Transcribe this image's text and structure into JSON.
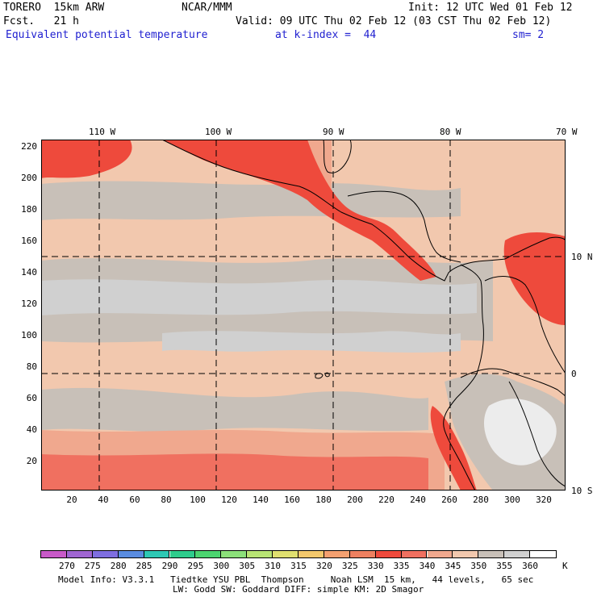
{
  "header": {
    "model": "TORERO  15km ARW",
    "institution": "NCAR/MMM",
    "init": "Init: 12 UTC Wed 01 Feb 12",
    "fcst": "Fcst.   21 h",
    "valid": "Valid: 09 UTC Thu 02 Feb 12 (03 CST Thu 02 Feb 12)",
    "field": "Equivalent potential temperature",
    "level": "at k-index =  44",
    "smoothing": "sm= 2"
  },
  "map": {
    "lon_labels": [
      "110 W",
      "100 W",
      "90 W",
      "80 W",
      "70 W"
    ],
    "lat_labels": [
      "10 N",
      "0",
      "10 S"
    ],
    "y_ticks": [
      "220",
      "200",
      "180",
      "160",
      "140",
      "120",
      "100",
      "80",
      "60",
      "40",
      "20"
    ],
    "x_ticks": [
      "20",
      "40",
      "60",
      "80",
      "100",
      "120",
      "140",
      "160",
      "180",
      "200",
      "220",
      "240",
      "260",
      "280",
      "300",
      "320"
    ]
  },
  "colorbar": {
    "labels": [
      "270",
      "275",
      "280",
      "285",
      "290",
      "295",
      "300",
      "305",
      "310",
      "315",
      "320",
      "325",
      "330",
      "335",
      "340",
      "345",
      "350",
      "355",
      "360"
    ],
    "unit": "K",
    "colors": [
      "#c85ac8",
      "#a066d2",
      "#7e6ee0",
      "#5a8ce0",
      "#2ec8b4",
      "#2ecc8c",
      "#4cd470",
      "#8ce07a",
      "#b8e474",
      "#e0e070",
      "#f4c86c",
      "#f4a070",
      "#ee8060",
      "#ee4a3c",
      "#f07060",
      "#f0a88e",
      "#f2c8ae",
      "#c8c0b8",
      "#d0d0d0",
      "#ffffff"
    ]
  },
  "footer": {
    "line1": "Model Info: V3.3.1   Tiedtke YSU PBL  Thompson     Noah LSM  15 km,   44 levels,   65 sec",
    "line2": "LW: Godd SW: Goddard DIFF: simple KM: 2D Smagor"
  }
}
